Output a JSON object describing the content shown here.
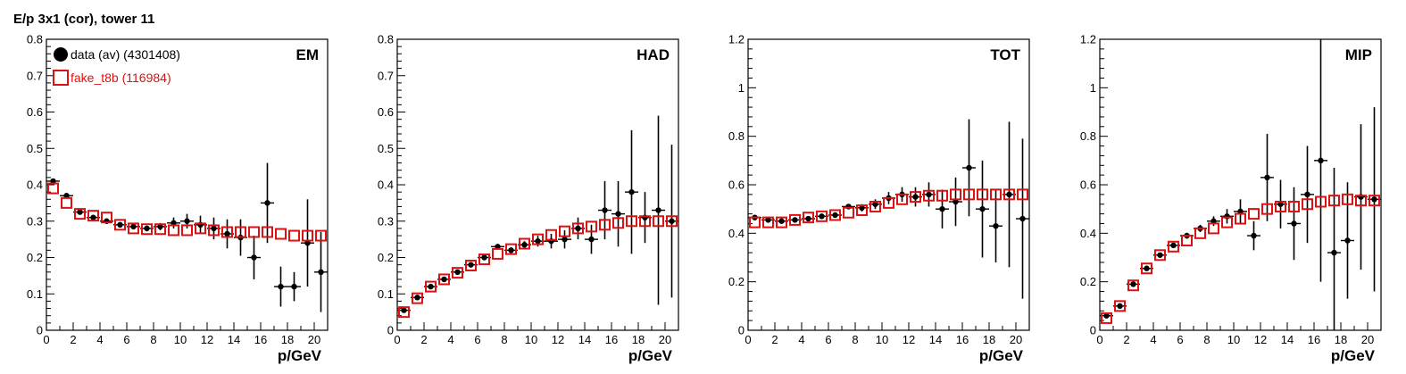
{
  "title": "E/p 3x1 (cor), tower 11",
  "legend": {
    "entries": [
      {
        "label": "data (av) (4301408)",
        "color": "#000000",
        "marker": "filled-circle"
      },
      {
        "label": "fake_t8b (116984)",
        "color": "#dd1111",
        "marker": "open-square"
      }
    ]
  },
  "colors": {
    "data": "#000000",
    "mc": "#dd1111",
    "axis": "#000000"
  },
  "chart_data": [
    {
      "type": "scatter",
      "panel_label": "EM",
      "xlabel": "p/GeV",
      "ylabel": "",
      "xlim": [
        0,
        21
      ],
      "ylim": [
        0,
        0.8
      ],
      "xticks": [
        "0",
        "2",
        "4",
        "6",
        "8",
        "10",
        "12",
        "14",
        "16",
        "18",
        "20"
      ],
      "yticks": [
        "0",
        "0.1",
        "0.2",
        "0.3",
        "0.4",
        "0.5",
        "0.6",
        "0.7",
        "0.8"
      ],
      "ytick_values": [
        0,
        0.1,
        0.2,
        0.3,
        0.4,
        0.5,
        0.6,
        0.7,
        0.8
      ],
      "legend_position": "top-left",
      "series": [
        {
          "name": "data (av) (4301408)",
          "x": [
            0.5,
            1.5,
            2.5,
            3.5,
            4.5,
            5.5,
            6.5,
            7.5,
            8.5,
            9.5,
            10.5,
            11.5,
            12.5,
            13.5,
            14.5,
            15.5,
            16.5,
            17.5,
            18.5,
            19.5,
            20.5
          ],
          "y": [
            0.41,
            0.37,
            0.325,
            0.31,
            0.3,
            0.29,
            0.285,
            0.28,
            0.285,
            0.295,
            0.3,
            0.29,
            0.28,
            0.265,
            0.255,
            0.2,
            0.35,
            0.12,
            0.12,
            0.24,
            0.16
          ],
          "yerr": [
            0.005,
            0.005,
            0.005,
            0.005,
            0.005,
            0.005,
            0.006,
            0.008,
            0.01,
            0.015,
            0.02,
            0.025,
            0.03,
            0.04,
            0.05,
            0.06,
            0.11,
            0.055,
            0.04,
            0.12,
            0.11
          ]
        },
        {
          "name": "fake_t8b (116984)",
          "x": [
            0.5,
            1.5,
            2.5,
            3.5,
            4.5,
            5.5,
            6.5,
            7.5,
            8.5,
            9.5,
            10.5,
            11.5,
            12.5,
            13.5,
            14.5,
            15.5,
            16.5,
            17.5,
            18.5,
            19.5,
            20.5
          ],
          "y": [
            0.39,
            0.35,
            0.32,
            0.315,
            0.31,
            0.29,
            0.28,
            0.278,
            0.278,
            0.275,
            0.275,
            0.28,
            0.275,
            0.27,
            0.27,
            0.27,
            0.27,
            0.265,
            0.26,
            0.26,
            0.26
          ]
        }
      ]
    },
    {
      "type": "scatter",
      "panel_label": "HAD",
      "xlabel": "p/GeV",
      "ylabel": "",
      "xlim": [
        0,
        21
      ],
      "ylim": [
        0,
        0.8
      ],
      "xticks": [
        "0",
        "2",
        "4",
        "6",
        "8",
        "10",
        "12",
        "14",
        "16",
        "18",
        "20"
      ],
      "yticks": [
        "0",
        "0.1",
        "0.2",
        "0.3",
        "0.4",
        "0.5",
        "0.6",
        "0.7",
        "0.8"
      ],
      "ytick_values": [
        0,
        0.1,
        0.2,
        0.3,
        0.4,
        0.5,
        0.6,
        0.7,
        0.8
      ],
      "series": [
        {
          "name": "data (av) (4301408)",
          "x": [
            0.5,
            1.5,
            2.5,
            3.5,
            4.5,
            5.5,
            6.5,
            7.5,
            8.5,
            9.5,
            10.5,
            11.5,
            12.5,
            13.5,
            14.5,
            15.5,
            16.5,
            17.5,
            18.5,
            19.5,
            20.5
          ],
          "y": [
            0.055,
            0.09,
            0.12,
            0.14,
            0.16,
            0.18,
            0.2,
            0.23,
            0.22,
            0.235,
            0.245,
            0.245,
            0.25,
            0.28,
            0.25,
            0.33,
            0.32,
            0.38,
            0.31,
            0.33,
            0.3
          ],
          "yerr": [
            0.004,
            0.004,
            0.004,
            0.004,
            0.005,
            0.005,
            0.005,
            0.006,
            0.008,
            0.01,
            0.015,
            0.02,
            0.025,
            0.03,
            0.04,
            0.08,
            0.09,
            0.17,
            0.07,
            0.26,
            0.21
          ]
        },
        {
          "name": "fake_t8b (116984)",
          "x": [
            0.5,
            1.5,
            2.5,
            3.5,
            4.5,
            5.5,
            6.5,
            7.5,
            8.5,
            9.5,
            10.5,
            11.5,
            12.5,
            13.5,
            14.5,
            15.5,
            16.5,
            17.5,
            18.5,
            19.5,
            20.5
          ],
          "y": [
            0.05,
            0.088,
            0.12,
            0.14,
            0.158,
            0.178,
            0.195,
            0.21,
            0.223,
            0.238,
            0.25,
            0.262,
            0.272,
            0.28,
            0.285,
            0.29,
            0.295,
            0.3,
            0.3,
            0.3,
            0.3
          ]
        }
      ]
    },
    {
      "type": "scatter",
      "panel_label": "TOT",
      "xlabel": "p/GeV",
      "ylabel": "",
      "xlim": [
        0,
        21
      ],
      "ylim": [
        0,
        1.2
      ],
      "xticks": [
        "0",
        "2",
        "4",
        "6",
        "8",
        "10",
        "12",
        "14",
        "16",
        "18",
        "20"
      ],
      "yticks": [
        "0",
        "0.2",
        "0.4",
        "0.6",
        "0.8",
        "1",
        "1.2"
      ],
      "ytick_values": [
        0,
        0.2,
        0.4,
        0.6,
        0.8,
        1.0,
        1.2
      ],
      "series": [
        {
          "name": "data (av) (4301408)",
          "x": [
            0.5,
            1.5,
            2.5,
            3.5,
            4.5,
            5.5,
            6.5,
            7.5,
            8.5,
            9.5,
            10.5,
            11.5,
            12.5,
            13.5,
            14.5,
            15.5,
            16.5,
            17.5,
            18.5,
            19.5,
            20.5
          ],
          "y": [
            0.465,
            0.455,
            0.45,
            0.455,
            0.46,
            0.47,
            0.475,
            0.51,
            0.505,
            0.52,
            0.545,
            0.56,
            0.55,
            0.56,
            0.5,
            0.53,
            0.67,
            0.5,
            0.43,
            0.56,
            0.46
          ],
          "yerr": [
            0.005,
            0.005,
            0.005,
            0.005,
            0.006,
            0.006,
            0.007,
            0.01,
            0.015,
            0.02,
            0.025,
            0.03,
            0.04,
            0.05,
            0.08,
            0.1,
            0.2,
            0.2,
            0.15,
            0.3,
            0.33
          ]
        },
        {
          "name": "fake_t8b (116984)",
          "x": [
            0.5,
            1.5,
            2.5,
            3.5,
            4.5,
            5.5,
            6.5,
            7.5,
            8.5,
            9.5,
            10.5,
            11.5,
            12.5,
            13.5,
            14.5,
            15.5,
            16.5,
            17.5,
            18.5,
            19.5,
            20.5
          ],
          "y": [
            0.445,
            0.445,
            0.445,
            0.455,
            0.465,
            0.47,
            0.475,
            0.485,
            0.495,
            0.51,
            0.525,
            0.54,
            0.55,
            0.555,
            0.555,
            0.56,
            0.56,
            0.56,
            0.56,
            0.56,
            0.56
          ]
        }
      ]
    },
    {
      "type": "scatter",
      "panel_label": "MIP",
      "xlabel": "p/GeV",
      "ylabel": "",
      "xlim": [
        0,
        21
      ],
      "ylim": [
        0,
        1.2
      ],
      "xticks": [
        "0",
        "2",
        "4",
        "6",
        "8",
        "10",
        "12",
        "14",
        "16",
        "18",
        "20"
      ],
      "yticks": [
        "0",
        "0.2",
        "0.4",
        "0.6",
        "0.8",
        "1",
        "1.2"
      ],
      "ytick_values": [
        0,
        0.2,
        0.4,
        0.6,
        0.8,
        1.0,
        1.2
      ],
      "series": [
        {
          "name": "data (av) (4301408)",
          "x": [
            0.5,
            1.5,
            2.5,
            3.5,
            4.5,
            5.5,
            6.5,
            7.5,
            8.5,
            9.5,
            10.5,
            11.5,
            12.5,
            13.5,
            14.5,
            15.5,
            16.5,
            17.5,
            18.5,
            19.5,
            20.5
          ],
          "y": [
            0.06,
            0.1,
            0.19,
            0.255,
            0.31,
            0.35,
            0.39,
            0.42,
            0.45,
            0.47,
            0.49,
            0.39,
            0.63,
            0.52,
            0.44,
            0.56,
            0.7,
            0.32,
            0.37,
            0.55,
            0.54
          ],
          "yerr": [
            0.005,
            0.005,
            0.006,
            0.007,
            0.008,
            0.01,
            0.012,
            0.015,
            0.02,
            0.03,
            0.05,
            0.06,
            0.18,
            0.1,
            0.15,
            0.2,
            0.5,
            0.35,
            0.24,
            0.3,
            0.38
          ]
        },
        {
          "name": "fake_t8b (116984)",
          "x": [
            0.5,
            1.5,
            2.5,
            3.5,
            4.5,
            5.5,
            6.5,
            7.5,
            8.5,
            9.5,
            10.5,
            11.5,
            12.5,
            13.5,
            14.5,
            15.5,
            16.5,
            17.5,
            18.5,
            19.5,
            20.5
          ],
          "y": [
            0.05,
            0.1,
            0.185,
            0.255,
            0.31,
            0.345,
            0.37,
            0.4,
            0.42,
            0.445,
            0.46,
            0.48,
            0.5,
            0.51,
            0.51,
            0.52,
            0.53,
            0.535,
            0.54,
            0.535,
            0.535
          ]
        }
      ]
    }
  ]
}
